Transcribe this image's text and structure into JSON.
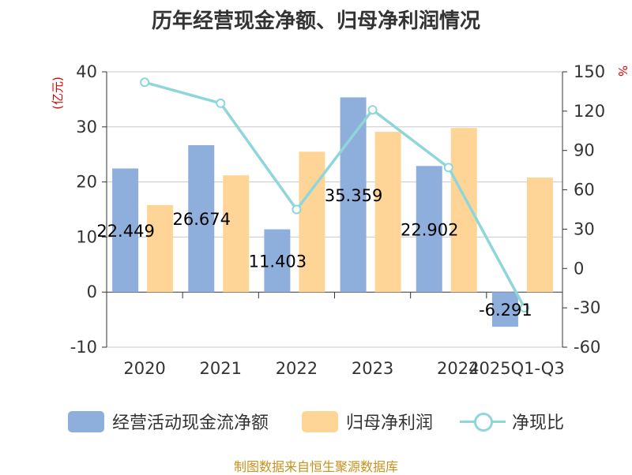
{
  "title": "历年经营现金净额、归母净利润情况",
  "source": "制图数据来自恒生聚源数据库",
  "left_unit": "(亿元)",
  "right_unit": "%",
  "colors": {
    "cash": "#8eaedb",
    "profit": "#fed596",
    "ratio": "#8ed6da"
  },
  "chart_data": {
    "type": "bar",
    "title": "历年经营现金净额、归母净利润情况",
    "categories": [
      "2020",
      "2021",
      "2022",
      "2023",
      "2024",
      "2025Q1-Q3"
    ],
    "ylim": [
      -10,
      40
    ],
    "yticks": [
      -10,
      0,
      10,
      20,
      30,
      40
    ],
    "y2lim": [
      -60,
      150
    ],
    "y2ticks": [
      -60,
      -30,
      0,
      30,
      60,
      90,
      120,
      150
    ],
    "series": [
      {
        "name": "经营活动现金流净额",
        "type": "bar",
        "axis": "left",
        "values": [
          22.449,
          26.674,
          11.403,
          35.359,
          22.902,
          -6.291
        ],
        "labels": [
          "22.449",
          "26.674",
          "11.403",
          "35.359",
          "22.902",
          "-6.291"
        ]
      },
      {
        "name": "归母净利润",
        "type": "bar",
        "axis": "left",
        "values": [
          15.8,
          21.2,
          25.5,
          29.1,
          29.8,
          20.8
        ]
      },
      {
        "name": "净现比",
        "type": "line",
        "axis": "right",
        "values": [
          142,
          126,
          45,
          121,
          77,
          -30
        ]
      }
    ],
    "grid": true,
    "legend": "bottom"
  }
}
